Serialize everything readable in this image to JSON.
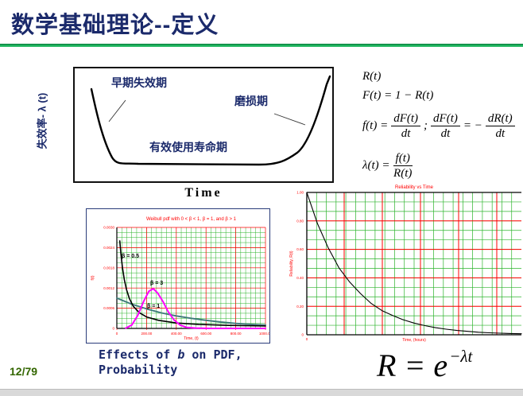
{
  "slide": {
    "title": "数学基础理论--定义",
    "page_number": "12/79"
  },
  "bathtub": {
    "y_axis_label": "失效率- λ (t)",
    "x_axis_label": "Time",
    "label_early": "早期失效期",
    "label_wear": "磨损期",
    "label_useful": "有效使用寿命期"
  },
  "formulas": {
    "line1": "R(t)",
    "line2": "F(t) = 1 − R(t)",
    "line3_lhs": "f(t) =",
    "line3_f1n": "dF(t)",
    "line3_f1d": "dt",
    "line3_sep": ";",
    "line3_f2n": "dF(t)",
    "line3_f2d": "dt",
    "line3_eq": "= −",
    "line3_f3n": "dR(t)",
    "line3_f3d": "dt",
    "line4_lhs": "λ(t) =",
    "line4_num": "f(t)",
    "line4_den": "R(t)",
    "big_lhs": "R = e",
    "big_sup": "−λt"
  },
  "caption": {
    "prefix": "Effects of ",
    "emph": "b",
    "suffix": " on PDF,",
    "line2": "Probability"
  },
  "chart_data": [
    {
      "type": "line",
      "title": "Weibull pdf with 0 < β < 1, β = 1, and β > 1",
      "xlabel": "Time, (t)",
      "ylabel": "f(t)",
      "xlim": [
        0,
        1000
      ],
      "ylim": [
        0,
        0.003
      ],
      "x_ticks": [
        "0",
        "200.00",
        "400.00",
        "600.00",
        "800.00",
        "1000.00"
      ],
      "y_ticks": [
        "0.0030",
        "0.0024",
        "0.0018",
        "0.0012",
        "0.0006",
        "0"
      ],
      "grid": "dense green minor grid with red major gridlines",
      "series": [
        {
          "name": "β = 0.5",
          "color": "#000000",
          "points": [
            [
              20,
              0.0026
            ],
            [
              28,
              0.0022
            ],
            [
              38,
              0.0018
            ],
            [
              50,
              0.00145
            ],
            [
              65,
              0.00115
            ],
            [
              85,
              0.00088
            ],
            [
              110,
              0.00066
            ],
            [
              150,
              0.00047
            ],
            [
              200,
              0.00034
            ],
            [
              280,
              0.00024
            ],
            [
              400,
              0.00016
            ],
            [
              550,
              0.00012
            ],
            [
              750,
              9e-05
            ],
            [
              1000,
              7e-05
            ]
          ]
        },
        {
          "name": "β = 1",
          "color": "#3e7a7a",
          "points": [
            [
              0,
              0.0009
            ],
            [
              100,
              0.00072
            ],
            [
              200,
              0.00058
            ],
            [
              300,
              0.00046
            ],
            [
              400,
              0.00037
            ],
            [
              500,
              0.0003
            ],
            [
              600,
              0.00024
            ],
            [
              700,
              0.00019
            ],
            [
              800,
              0.00015
            ],
            [
              900,
              0.00012
            ],
            [
              1000,
              0.0001
            ]
          ]
        },
        {
          "name": "β = 3",
          "color": "#ff00ff",
          "points": [
            [
              60,
              1e-05
            ],
            [
              100,
              0.0001
            ],
            [
              140,
              0.00038
            ],
            [
              180,
              0.0008
            ],
            [
              215,
              0.0011
            ],
            [
              245,
              0.00118
            ],
            [
              275,
              0.00105
            ],
            [
              310,
              0.0008
            ],
            [
              345,
              0.0005
            ],
            [
              385,
              0.00025
            ],
            [
              425,
              0.0001
            ],
            [
              470,
              3e-05
            ],
            [
              530,
              1e-05
            ],
            [
              620,
              0
            ],
            [
              1000,
              0
            ]
          ]
        }
      ],
      "legend_position": "labels drawn next to curves"
    },
    {
      "type": "line",
      "title": "Reliability vs Time",
      "xlabel": "Time, (hours)",
      "ylabel": "Reliability, R(t)",
      "ylim": [
        0,
        1.0
      ],
      "x_ticks": [
        "0"
      ],
      "y_ticks": [
        "1.00",
        "0.80",
        "0.60",
        "0.40",
        "0.20",
        "0"
      ],
      "grid": "dense green minor grid with red major gridlines",
      "series": [
        {
          "name": "R(t) = e^(−λt)",
          "color": "#000000",
          "points_xfraction_vs_R": [
            [
              0,
              1.0
            ],
            [
              0.05,
              0.78
            ],
            [
              0.1,
              0.61
            ],
            [
              0.15,
              0.47
            ],
            [
              0.2,
              0.37
            ],
            [
              0.25,
              0.29
            ],
            [
              0.3,
              0.22
            ],
            [
              0.35,
              0.17
            ],
            [
              0.4,
              0.135
            ],
            [
              0.45,
              0.105
            ],
            [
              0.5,
              0.082
            ],
            [
              0.55,
              0.064
            ],
            [
              0.6,
              0.05
            ],
            [
              0.65,
              0.039
            ],
            [
              0.7,
              0.03
            ],
            [
              0.75,
              0.024
            ],
            [
              0.8,
              0.018
            ],
            [
              0.85,
              0.014
            ],
            [
              0.9,
              0.011
            ],
            [
              0.95,
              0.009
            ],
            [
              1.0,
              0.007
            ]
          ]
        }
      ]
    }
  ],
  "colors": {
    "title_navy": "#1b2a6b",
    "accent_green": "#00a24e",
    "page_number_green": "#336600",
    "chart_red": "#ff0000",
    "grid_green": "#2cb42c",
    "curve_black": "#000000",
    "curve_teal": "#3e7a7a",
    "curve_magenta": "#ff00ff",
    "slide_bg": "#ffffff",
    "footer_gray": "#d9d9d9"
  }
}
